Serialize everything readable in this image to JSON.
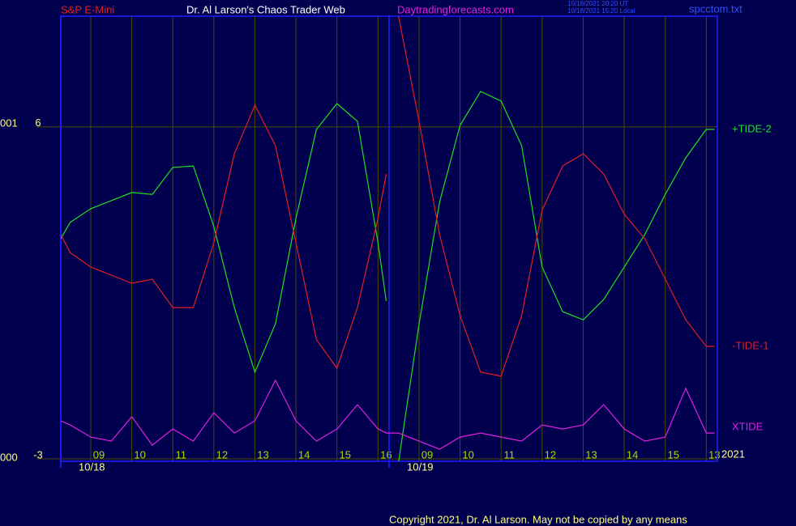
{
  "chart_data": {
    "type": "line",
    "header": {
      "symbol": "S&P E-Mini",
      "title": "Dr. Al Larson's Chaos Trader Web",
      "site": "Daytradingforecasts.com",
      "stamp_ut": "10/18/2021 20:20 UT",
      "stamp_local": "10/18/2021 15:20 Local",
      "file": "spcctom.txt"
    },
    "y_side_labels": [
      "001",
      "000"
    ],
    "year_label": "2021",
    "copyright": "Copyright 2021, Dr. Al Larson. May not be copied by any means",
    "ylim": [
      -3,
      9
    ],
    "yticks": [
      6,
      -3
    ],
    "grid": true,
    "xlim": [
      -0.73,
      15.27
    ],
    "xticks": [
      {
        "value": 0,
        "label": "09"
      },
      {
        "value": 1,
        "label": "10"
      },
      {
        "value": 2,
        "label": "11"
      },
      {
        "value": 3,
        "label": "12"
      },
      {
        "value": 4,
        "label": "13"
      },
      {
        "value": 5,
        "label": "14"
      },
      {
        "value": 6,
        "label": "15"
      },
      {
        "value": 7,
        "label": "16"
      },
      {
        "value": 8,
        "label": "09"
      },
      {
        "value": 9,
        "label": "10"
      },
      {
        "value": 10,
        "label": "11"
      },
      {
        "value": 11,
        "label": "12"
      },
      {
        "value": 12,
        "label": "13"
      },
      {
        "value": 13,
        "label": "14"
      },
      {
        "value": 14,
        "label": "15"
      },
      {
        "value": 15,
        "label": "13"
      }
    ],
    "date_ticks": [
      {
        "value": -0.73,
        "label": "10/18"
      },
      {
        "value": 7.27,
        "label": "10/19"
      }
    ],
    "x": [
      -0.73,
      -0.5,
      0,
      0.5,
      1,
      1.5,
      2,
      2.5,
      3,
      3.5,
      4,
      4.5,
      5,
      5.5,
      6,
      6.5,
      7,
      7.2,
      7.27,
      7.5,
      8,
      8.5,
      9,
      9.5,
      10,
      10.5,
      11,
      11.5,
      12,
      12.5,
      13,
      13.5,
      14,
      14.5,
      15,
      15.2
    ],
    "series": [
      {
        "name": "+TIDE-2",
        "color": "#20e020",
        "values": [
          2.97,
          3.41,
          3.78,
          4.0,
          4.22,
          4.17,
          4.9,
          4.94,
          3.3,
          1.1,
          -0.65,
          0.66,
          3.52,
          5.93,
          6.63,
          6.15,
          2.86,
          1.28,
          null,
          -3.1,
          0.66,
          3.96,
          6.04,
          6.96,
          6.7,
          5.49,
          2.2,
          0.99,
          0.77,
          1.32,
          2.2,
          3.08,
          4.17,
          5.16,
          5.93,
          5.93
        ]
      },
      {
        "name": "-TIDE-1",
        "color": "#e02020",
        "values": [
          3.08,
          2.59,
          2.2,
          1.98,
          1.76,
          1.87,
          1.1,
          1.1,
          2.86,
          5.27,
          6.59,
          5.49,
          2.86,
          0.23,
          -0.54,
          1.1,
          3.52,
          4.72,
          null,
          9.0,
          6.15,
          3.08,
          0.88,
          -0.65,
          -0.76,
          0.88,
          3.74,
          4.94,
          5.27,
          4.72,
          3.63,
          2.97,
          1.87,
          0.77,
          0.05,
          0.05
        ]
      },
      {
        "name": "XTIDE",
        "color": "#e020e0",
        "values": [
          -1.97,
          -2.08,
          -2.41,
          -2.52,
          -1.86,
          -2.63,
          -2.19,
          -2.52,
          -1.75,
          -2.3,
          -1.97,
          -0.87,
          -1.97,
          -2.52,
          -2.19,
          -1.53,
          -2.19,
          -2.3,
          -2.3,
          -2.3,
          -2.52,
          -2.74,
          -2.41,
          -2.3,
          -2.41,
          -2.52,
          -2.08,
          -2.19,
          -2.08,
          -1.53,
          -2.19,
          -2.52,
          -2.41,
          -1.09,
          -2.3,
          -2.3
        ]
      }
    ]
  }
}
